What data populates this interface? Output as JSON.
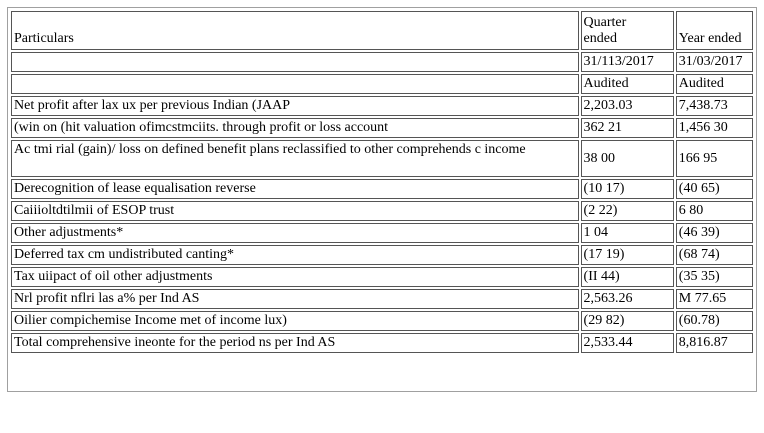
{
  "header": {
    "particulars": "Particulars",
    "quarter_line1": "Quarter",
    "quarter_line2": "ended",
    "year": "Year ended",
    "quarter_date": "31/113/2017",
    "year_date": "31/03/2017",
    "quarter_status": "Audited",
    "year_status": "Audited"
  },
  "rows": [
    {
      "label": "Net profit after lax ux per previous Indian (JAAP",
      "quarter": "2,203.03",
      "year": "7,438.73"
    },
    {
      "label": "(win on (hit valuation ofimcstmciits. through profit or loss account",
      "quarter": "362 21",
      "year": "1,456 30"
    },
    {
      "label": "Ac tmi rial (gain)/ loss on defined benefit plans reclassified to other comprehends c income",
      "quarter": "38 00",
      "year": "166 95"
    },
    {
      "label": "Derecognition of lease equalisation reverse",
      "quarter": "(10 17)",
      "year": "(40 65)"
    },
    {
      "label": "Caiiioltdtilmii of ESOP trust",
      "quarter": "(2 22)",
      "year": "6 80"
    },
    {
      "label": "Other adjustments*",
      "quarter": "1 04",
      "year": "(46 39)"
    },
    {
      "label": "Deferred tax cm undistributed canting*",
      "quarter": "(17 19)",
      "year": "(68 74)"
    },
    {
      "label": "Tax uiipact of oil other adjustments",
      "quarter": "(II 44)",
      "year": "(35 35)"
    },
    {
      "label": "Nrl profit nflri las a% per Ind AS",
      "quarter": "2,563.26",
      "year": "M 77.65"
    },
    {
      "label": "Oilier compichemise Income met of income lux)",
      "quarter": "(29 82)",
      "year": "(60.78)"
    },
    {
      "label": "Total comprehensive ineonte for the period ns per Ind AS",
      "quarter": "2,533.44",
      "year": "8,816.87"
    }
  ]
}
